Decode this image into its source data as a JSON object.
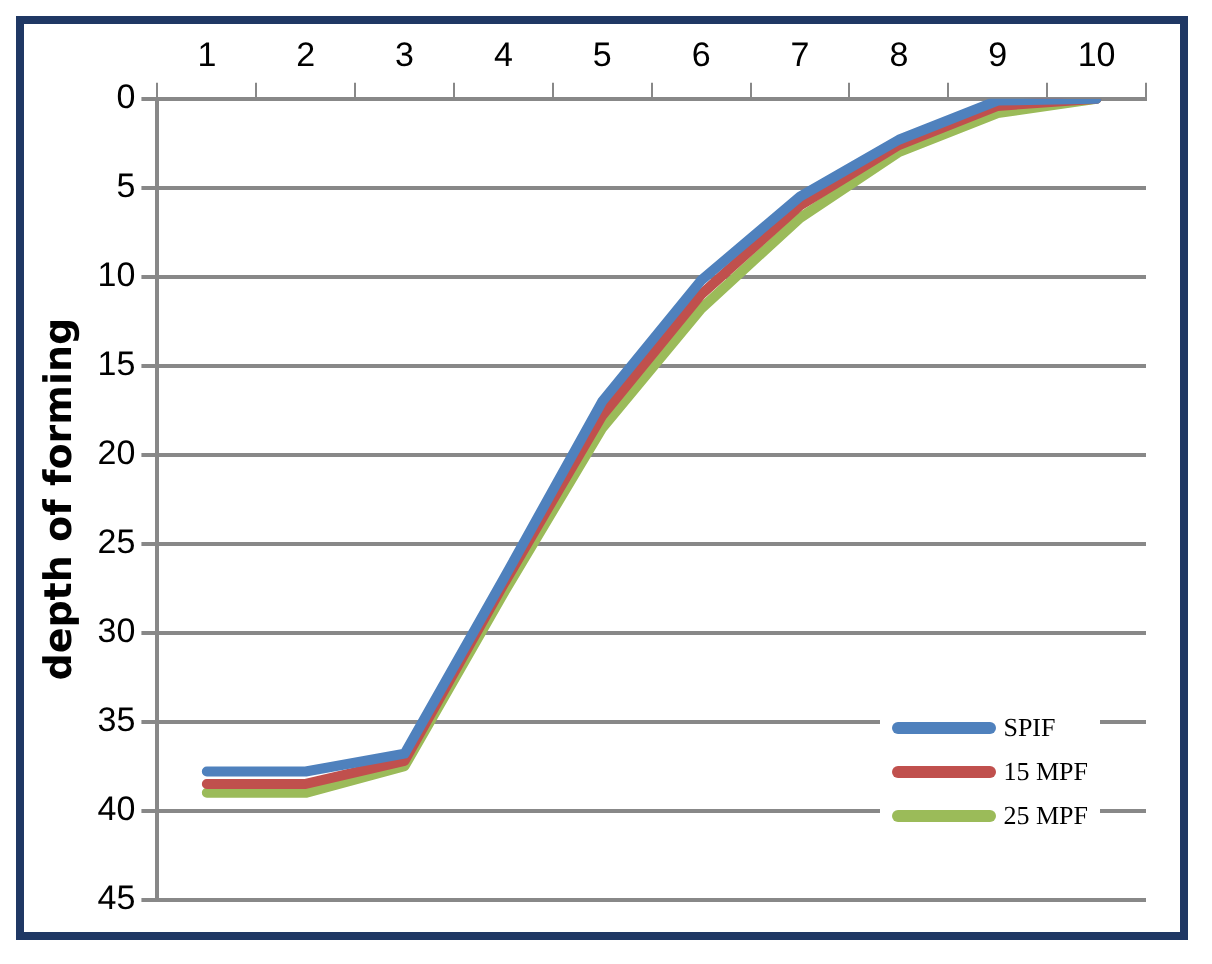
{
  "chart_data": {
    "type": "line",
    "ylabel": "depth of forming",
    "categories": [
      "1",
      "2",
      "3",
      "4",
      "5",
      "6",
      "7",
      "8",
      "9",
      "10"
    ],
    "series": [
      {
        "name": "SPIF",
        "color": "#4f81bd",
        "values": [
          37.8,
          37.8,
          36.8,
          27,
          17,
          10.2,
          5.5,
          2.3,
          0.1,
          0
        ]
      },
      {
        "name": "15 MPF",
        "color": "#c0504d",
        "values": [
          38.5,
          38.5,
          37.2,
          27.3,
          17.8,
          11,
          6,
          2.6,
          0.4,
          0
        ]
      },
      {
        "name": "25 MPF",
        "color": "#9bbb59",
        "values": [
          39,
          39,
          37.5,
          27.8,
          18.5,
          11.8,
          6.7,
          3,
          0.8,
          0
        ]
      }
    ],
    "ylim": [
      45,
      0
    ],
    "yticks": [
      0,
      5,
      10,
      15,
      20,
      25,
      30,
      35,
      40,
      45
    ],
    "grid": "y",
    "legend": "bottom right",
    "marker": "none",
    "line_style": "solid"
  }
}
